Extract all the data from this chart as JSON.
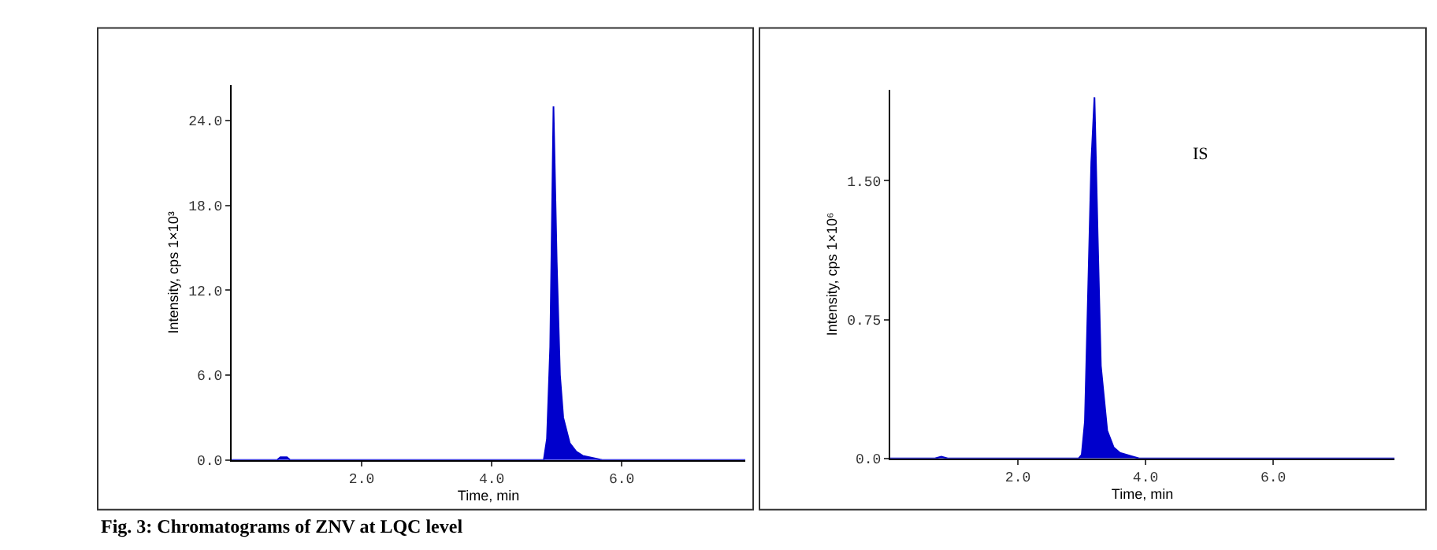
{
  "chart_data": [
    {
      "type": "area",
      "xlabel": "Time, min",
      "ylabel": "Intensity, cps 1×10³",
      "xlim": [
        0,
        7.9
      ],
      "ylim": [
        0,
        26.5
      ],
      "xticks": [
        {
          "value": 2,
          "label": "2.0"
        },
        {
          "value": 4,
          "label": "4.0"
        },
        {
          "value": 6,
          "label": "6.0"
        }
      ],
      "yticks": [
        {
          "value": 0,
          "label": "0.0"
        },
        {
          "value": 6,
          "label": "6.0"
        },
        {
          "value": 12,
          "label": "12.0"
        },
        {
          "value": 18,
          "label": "18.0"
        },
        {
          "value": 24,
          "label": "24.0"
        }
      ],
      "series": [
        {
          "color": "#0000cc",
          "x": [
            0,
            0.7,
            0.75,
            0.8,
            0.85,
            0.9,
            4.7,
            4.8,
            4.85,
            4.9,
            4.95,
            5.0,
            5.05,
            5.1,
            5.2,
            5.3,
            5.4,
            5.6,
            5.7,
            7.9
          ],
          "values": [
            0,
            0,
            0.2,
            0.2,
            0.2,
            0,
            0,
            0,
            1.5,
            8,
            25,
            14,
            6,
            3,
            1.2,
            0.6,
            0.3,
            0.1,
            0,
            0
          ]
        }
      ],
      "annotations": [
        "Fig. 3: Chromatograms of ZNV at LQC level"
      ]
    },
    {
      "type": "area",
      "xlabel": "Time, min",
      "ylabel": "Intensity, cps 1×10⁶",
      "xlim": [
        0,
        7.9
      ],
      "ylim": [
        0,
        1.99
      ],
      "xticks": [
        {
          "value": 2,
          "label": "2.0"
        },
        {
          "value": 4,
          "label": "4.0"
        },
        {
          "value": 6,
          "label": "6.0"
        }
      ],
      "yticks": [
        {
          "value": 0,
          "label": "0.0"
        },
        0.75,
        {
          "value": 1.5,
          "label": "1.50"
        }
      ],
      "series": [
        {
          "color": "#0000cc",
          "x": [
            0,
            0.7,
            0.8,
            0.9,
            2.9,
            2.95,
            3.0,
            3.05,
            3.1,
            3.15,
            3.2,
            3.25,
            3.3,
            3.4,
            3.5,
            3.6,
            3.8,
            3.9,
            7.9
          ],
          "values": [
            0,
            0,
            0.01,
            0,
            0,
            0,
            0.02,
            0.2,
            0.9,
            1.6,
            1.95,
            1.2,
            0.5,
            0.15,
            0.06,
            0.03,
            0.01,
            0,
            0
          ]
        }
      ],
      "annotations": [
        "IS"
      ]
    }
  ]
}
